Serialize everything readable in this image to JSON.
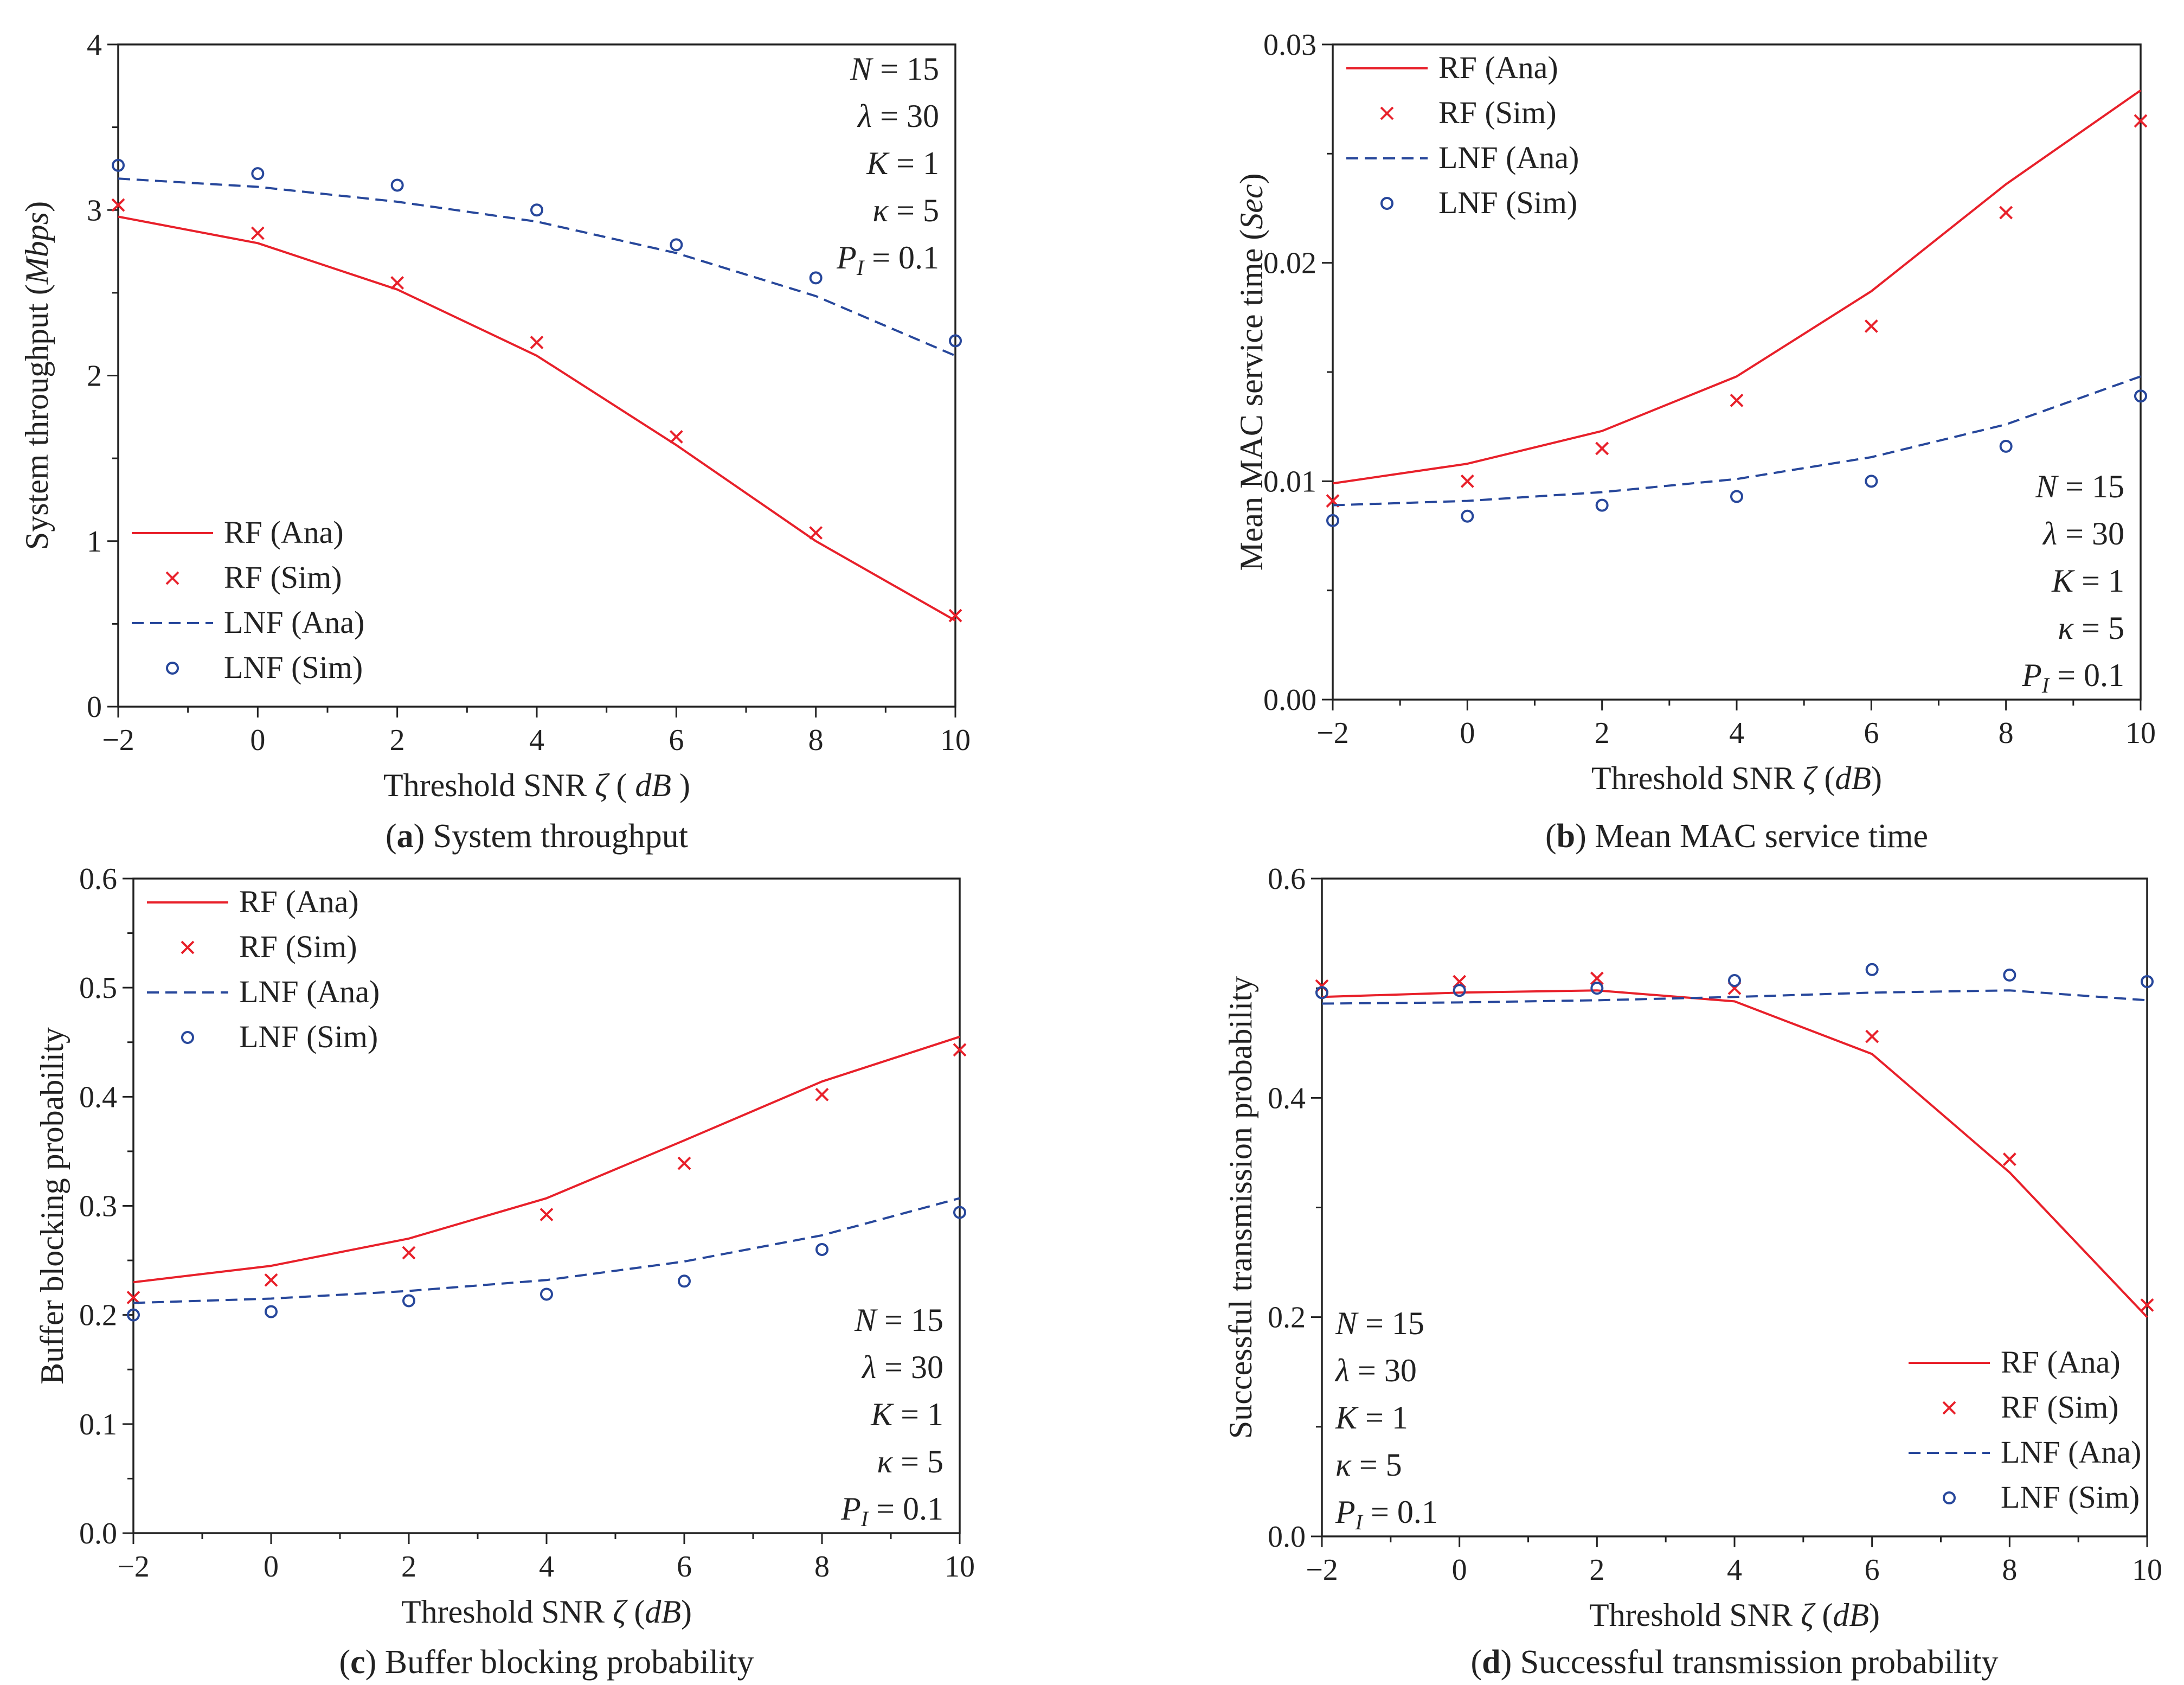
{
  "figure": {
    "series_names": [
      "RF (Ana)",
      "RF (Sim)",
      "LNF (Ana)",
      "LNF (Sim)"
    ],
    "colors": {
      "rf": "#e8202a",
      "lnf": "#27479b",
      "axis": "#222222"
    },
    "params": {
      "N": "N = 15",
      "lambda": "λ = 30",
      "K": "K = 1",
      "kappa": "κ = 5",
      "PI": "PI = 0.1"
    }
  },
  "chart_data": [
    {
      "type": "line",
      "panel": "a",
      "caption_letter": "(a)",
      "caption_text": "System throughput",
      "xlabel": "Threshold SNR ζ ( dB )",
      "ylabel": "System throughput (Mbps)",
      "xlim": [
        -2,
        10
      ],
      "ylim": [
        0,
        4
      ],
      "xticks": [
        -2,
        0,
        2,
        4,
        6,
        8,
        10
      ],
      "yticks": [
        0,
        1,
        2,
        3,
        4
      ],
      "legend_position": "lower-left",
      "params_position": "top-right",
      "series": [
        {
          "name": "RF (Ana)",
          "kind": "line",
          "x": [
            -2,
            0,
            2,
            4,
            6,
            8,
            10
          ],
          "values": [
            2.96,
            2.8,
            2.52,
            2.12,
            1.58,
            1.0,
            0.52
          ]
        },
        {
          "name": "RF (Sim)",
          "kind": "marker-x",
          "x": [
            -2,
            0,
            2,
            4,
            6,
            8,
            10
          ],
          "values": [
            3.03,
            2.86,
            2.56,
            2.2,
            1.63,
            1.05,
            0.55
          ]
        },
        {
          "name": "LNF (Ana)",
          "kind": "dashed",
          "x": [
            -2,
            0,
            2,
            4,
            6,
            8,
            10
          ],
          "values": [
            3.19,
            3.14,
            3.05,
            2.93,
            2.74,
            2.48,
            2.12
          ]
        },
        {
          "name": "LNF (Sim)",
          "kind": "marker-o",
          "x": [
            -2,
            0,
            2,
            4,
            6,
            8,
            10
          ],
          "values": [
            3.27,
            3.22,
            3.15,
            3.0,
            2.79,
            2.59,
            2.21
          ]
        }
      ]
    },
    {
      "type": "line",
      "panel": "b",
      "caption_letter": "(b)",
      "caption_text": "Mean MAC service time",
      "xlabel": "Threshold SNR ζ (dB)",
      "ylabel": "Mean MAC service time (Sec)",
      "xlim": [
        -2,
        10
      ],
      "ylim": [
        0,
        0.03
      ],
      "xticks": [
        -2,
        0,
        2,
        4,
        6,
        8,
        10
      ],
      "yticks": [
        "0.00",
        "0.01",
        "0.02",
        "0.03"
      ],
      "legend_position": "top-left",
      "params_position": "bottom-right",
      "series": [
        {
          "name": "RF (Ana)",
          "kind": "line",
          "x": [
            -2,
            0,
            2,
            4,
            6,
            8,
            10
          ],
          "values": [
            0.0099,
            0.0108,
            0.0123,
            0.0148,
            0.0187,
            0.0236,
            0.0279
          ]
        },
        {
          "name": "RF (Sim)",
          "kind": "marker-x",
          "x": [
            -2,
            0,
            2,
            4,
            6,
            8,
            10
          ],
          "values": [
            0.0091,
            0.01,
            0.0115,
            0.0137,
            0.0171,
            0.0223,
            0.0265
          ]
        },
        {
          "name": "LNF (Ana)",
          "kind": "dashed",
          "x": [
            -2,
            0,
            2,
            4,
            6,
            8,
            10
          ],
          "values": [
            0.0089,
            0.0091,
            0.0095,
            0.0101,
            0.0111,
            0.0126,
            0.0148
          ]
        },
        {
          "name": "LNF (Sim)",
          "kind": "marker-o",
          "x": [
            -2,
            0,
            2,
            4,
            6,
            8,
            10
          ],
          "values": [
            0.0082,
            0.0084,
            0.0089,
            0.0093,
            0.01,
            0.0116,
            0.0139
          ]
        }
      ]
    },
    {
      "type": "line",
      "panel": "c",
      "caption_letter": "(c)",
      "caption_text": "Buffer blocking probability",
      "xlabel": "Threshold SNR ζ (dB)",
      "ylabel": "Buffer blocking probability",
      "xlim": [
        -2,
        10
      ],
      "ylim": [
        0,
        0.6
      ],
      "xticks": [
        -2,
        0,
        2,
        4,
        6,
        8,
        10
      ],
      "yticks": [
        "0.0",
        "0.1",
        "0.2",
        "0.3",
        "0.4",
        "0.5",
        "0.6"
      ],
      "legend_position": "top-left",
      "params_position": "bottom-right",
      "series": [
        {
          "name": "RF (Ana)",
          "kind": "line",
          "x": [
            -2,
            0,
            2,
            4,
            6,
            8,
            10
          ],
          "values": [
            0.23,
            0.245,
            0.27,
            0.307,
            0.36,
            0.414,
            0.455
          ]
        },
        {
          "name": "RF (Sim)",
          "kind": "marker-x",
          "x": [
            -2,
            0,
            2,
            4,
            6,
            8,
            10
          ],
          "values": [
            0.216,
            0.232,
            0.257,
            0.292,
            0.339,
            0.402,
            0.443
          ]
        },
        {
          "name": "LNF (Ana)",
          "kind": "dashed",
          "x": [
            -2,
            0,
            2,
            4,
            6,
            8,
            10
          ],
          "values": [
            0.211,
            0.215,
            0.222,
            0.232,
            0.249,
            0.273,
            0.307
          ]
        },
        {
          "name": "LNF (Sim)",
          "kind": "marker-o",
          "x": [
            -2,
            0,
            2,
            4,
            6,
            8,
            10
          ],
          "values": [
            0.2,
            0.203,
            0.213,
            0.219,
            0.231,
            0.26,
            0.294
          ]
        }
      ]
    },
    {
      "type": "line",
      "panel": "d",
      "caption_letter": "(d)",
      "caption_text": "Successful transmission probability",
      "xlabel": "Threshold SNR ζ (dB)",
      "ylabel": "Successful transmission probability",
      "xlim": [
        -2,
        10
      ],
      "ylim": [
        0,
        0.6
      ],
      "xticks": [
        -2,
        0,
        2,
        4,
        6,
        8,
        10
      ],
      "yticks": [
        "0.0",
        "0.2",
        "0.4",
        "0.6"
      ],
      "legend_position": "bottom-right",
      "params_position": "bottom-left",
      "series": [
        {
          "name": "RF (Ana)",
          "kind": "line",
          "x": [
            -2,
            0,
            2,
            4,
            6,
            8,
            10
          ],
          "values": [
            0.492,
            0.496,
            0.498,
            0.488,
            0.44,
            0.332,
            0.2
          ]
        },
        {
          "name": "RF (Sim)",
          "kind": "marker-x",
          "x": [
            -2,
            0,
            2,
            4,
            6,
            8,
            10
          ],
          "values": [
            0.502,
            0.506,
            0.509,
            0.5,
            0.456,
            0.344,
            0.211
          ]
        },
        {
          "name": "LNF (Ana)",
          "kind": "dashed",
          "x": [
            -2,
            0,
            2,
            4,
            6,
            8,
            10
          ],
          "values": [
            0.486,
            0.487,
            0.489,
            0.492,
            0.496,
            0.498,
            0.489
          ]
        },
        {
          "name": "LNF (Sim)",
          "kind": "marker-o",
          "x": [
            -2,
            0,
            2,
            4,
            6,
            8,
            10
          ],
          "values": [
            0.496,
            0.498,
            0.5,
            0.507,
            0.517,
            0.512,
            0.506
          ]
        }
      ]
    }
  ]
}
